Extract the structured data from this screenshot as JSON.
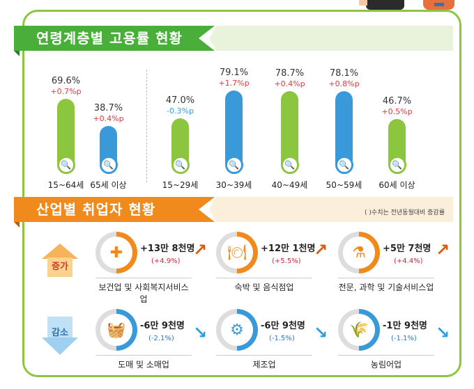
{
  "colors": {
    "green": "#8cc63f",
    "blue": "#3a9ad9",
    "red": "#e03a3e",
    "orange": "#f08a1c",
    "header_green": "#4aae3b"
  },
  "employment_section": {
    "title": "연령계층별 고용률 현황",
    "groups": [
      {
        "age": "15~64세",
        "rate": "69.6%",
        "change": "+0.7%p",
        "direction": "up",
        "color": "green"
      },
      {
        "age": "65세 이상",
        "rate": "38.7%",
        "change": "+0.4%p",
        "direction": "up",
        "color": "blue"
      },
      {
        "age": "15~29세",
        "rate": "47.0%",
        "change": "-0.3%p",
        "direction": "down",
        "color": "green"
      },
      {
        "age": "30~39세",
        "rate": "79.1%",
        "change": "+1.7%p",
        "direction": "up",
        "color": "blue"
      },
      {
        "age": "40~49세",
        "rate": "78.7%",
        "change": "+0.4%p",
        "direction": "up",
        "color": "green"
      },
      {
        "age": "50~59세",
        "rate": "78.1%",
        "change": "+0.8%p",
        "direction": "up",
        "color": "blue"
      },
      {
        "age": "60세 이상",
        "rate": "46.7%",
        "change": "+0.5%p",
        "direction": "up",
        "color": "green"
      }
    ]
  },
  "industry_section": {
    "title": "산업별 취업자 현황",
    "note": "( )수치는 전년동월대비 증감률",
    "increase_label": "증가",
    "decrease_label": "감소",
    "increase": [
      {
        "name": "보건업 및 사회복지서비스업",
        "count": "+13만 8천명",
        "pct": "(+4.9%)",
        "icon": "first-aid-kit-icon"
      },
      {
        "name": "숙박 및 음식점업",
        "count": "+12만 1천명",
        "pct": "(+5.5%)",
        "icon": "dining-icon"
      },
      {
        "name": "전문, 과학 및 기술서비스업",
        "count": "+5만 7천명",
        "pct": "(+4.4%)",
        "icon": "flask-icon"
      }
    ],
    "decrease": [
      {
        "name": "도매 및 소매업",
        "count": "-6만 9천명",
        "pct": "(-2.1%)",
        "icon": "basket-icon"
      },
      {
        "name": "제조업",
        "count": "-6만 9천명",
        "pct": "(-1.5%)",
        "icon": "gears-icon"
      },
      {
        "name": "농림어업",
        "count": "-1만 9천명",
        "pct": "(-1.1%)",
        "icon": "wheat-icon"
      }
    ]
  }
}
